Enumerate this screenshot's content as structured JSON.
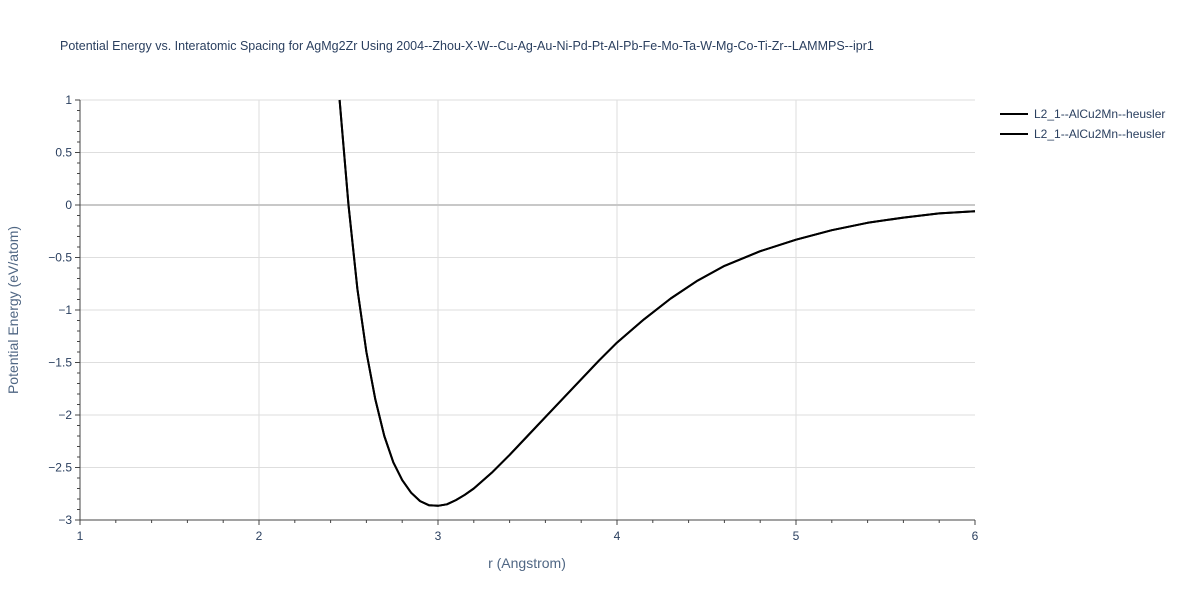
{
  "chart_data": {
    "type": "line",
    "title": "Potential Energy vs. Interatomic Spacing for AgMg2Zr Using 2004--Zhou-X-W--Cu-Ag-Au-Ni-Pd-Pt-Al-Pb-Fe-Mo-Ta-W-Mg-Co-Ti-Zr--LAMMPS--ipr1",
    "xlabel": "r (Angstrom)",
    "ylabel": "Potential Energy (eV/atom)",
    "xlim": [
      1,
      6
    ],
    "ylim": [
      -3,
      1
    ],
    "x_ticks": [
      1,
      2,
      3,
      4,
      5,
      6
    ],
    "x_tick_labels": [
      "1",
      "2",
      "3",
      "4",
      "5",
      "6"
    ],
    "y_ticks": [
      1,
      0.5,
      0,
      -0.5,
      -1,
      -1.5,
      -2,
      -2.5,
      -3
    ],
    "y_tick_labels": [
      "1",
      "0.5",
      "0",
      "−0.5",
      "−1",
      "−1.5",
      "−2",
      "−2.5",
      "−3"
    ],
    "grid": true,
    "legend_position": "top-right",
    "series": [
      {
        "name": "L2_1--AlCu2Mn--heusler",
        "color": "#000000",
        "x": [
          2.45,
          2.5,
          2.55,
          2.6,
          2.65,
          2.7,
          2.75,
          2.8,
          2.85,
          2.9,
          2.95,
          3.0,
          3.05,
          3.1,
          3.15,
          3.2,
          3.3,
          3.4,
          3.5,
          3.6,
          3.7,
          3.8,
          3.9,
          4.0,
          4.15,
          4.3,
          4.45,
          4.6,
          4.8,
          5.0,
          5.2,
          5.4,
          5.6,
          5.8,
          6.0
        ],
        "y": [
          1.0,
          0.0,
          -0.8,
          -1.4,
          -1.85,
          -2.2,
          -2.45,
          -2.62,
          -2.74,
          -2.82,
          -2.86,
          -2.865,
          -2.85,
          -2.81,
          -2.76,
          -2.7,
          -2.55,
          -2.38,
          -2.2,
          -2.02,
          -1.84,
          -1.66,
          -1.48,
          -1.31,
          -1.09,
          -0.89,
          -0.72,
          -0.58,
          -0.44,
          -0.33,
          -0.24,
          -0.17,
          -0.12,
          -0.08,
          -0.06
        ]
      },
      {
        "name": "L2_1--AlCu2Mn--heusler",
        "color": "#000000",
        "x": [
          2.45,
          2.5,
          2.55,
          2.6,
          2.65,
          2.7,
          2.75,
          2.8,
          2.85,
          2.9,
          2.95,
          3.0,
          3.05,
          3.1,
          3.15,
          3.2,
          3.3,
          3.4,
          3.5,
          3.6,
          3.7,
          3.8,
          3.9,
          4.0,
          4.15,
          4.3,
          4.45,
          4.6,
          4.8,
          5.0,
          5.2,
          5.4,
          5.6,
          5.8,
          6.0
        ],
        "y": [
          1.0,
          0.0,
          -0.8,
          -1.4,
          -1.85,
          -2.2,
          -2.45,
          -2.62,
          -2.74,
          -2.82,
          -2.86,
          -2.865,
          -2.85,
          -2.81,
          -2.76,
          -2.7,
          -2.55,
          -2.38,
          -2.2,
          -2.02,
          -1.84,
          -1.66,
          -1.48,
          -1.31,
          -1.09,
          -0.89,
          -0.72,
          -0.58,
          -0.44,
          -0.33,
          -0.24,
          -0.17,
          -0.12,
          -0.08,
          -0.06
        ]
      }
    ]
  }
}
